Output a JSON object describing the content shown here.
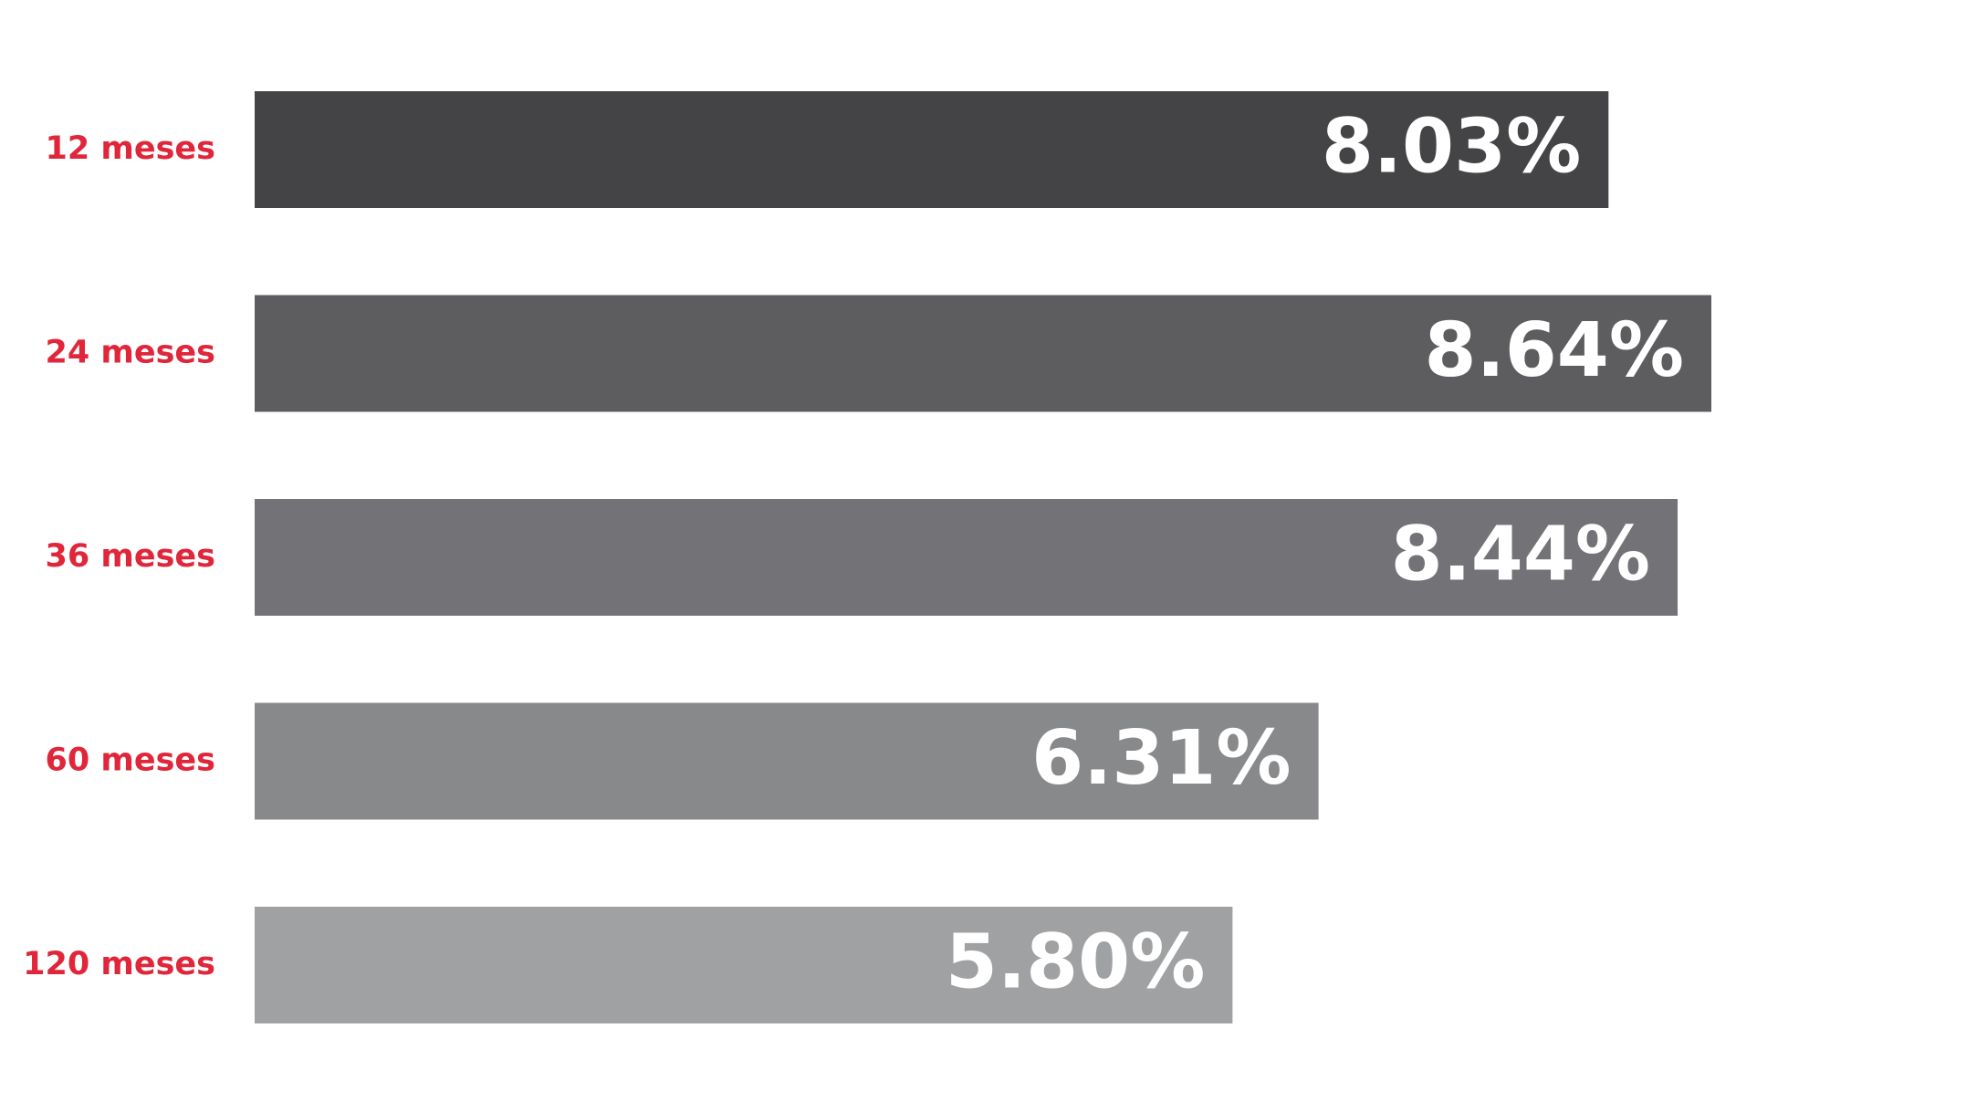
{
  "chart_data": {
    "type": "bar",
    "orientation": "horizontal",
    "categories": [
      "12 meses",
      "24 meses",
      "36 meses",
      "60 meses",
      "120 meses"
    ],
    "values": [
      8.03,
      8.64,
      8.44,
      6.31,
      5.8
    ],
    "value_labels": [
      "8.03%",
      "8.64%",
      "8.44%",
      "6.31%",
      "5.80%"
    ],
    "colors": [
      "#444446",
      "#5d5d60",
      "#737377",
      "#88898b",
      "#a0a1a3"
    ]
  }
}
